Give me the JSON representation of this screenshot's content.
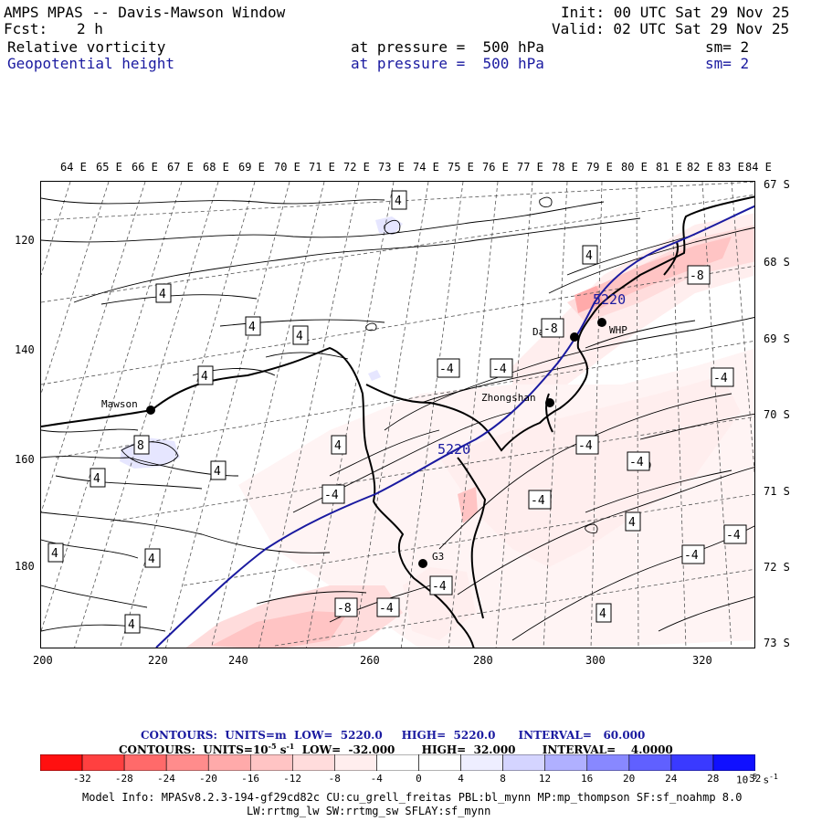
{
  "header": {
    "title": "AMPS MPAS -- Davis-Mawson Window",
    "fcst_label": "Fcst:",
    "fcst_value": "2 h",
    "init": "Init: 00 UTC Sat 29 Nov 25",
    "valid": "Valid: 02 UTC Sat 29 Nov 25",
    "field1": {
      "name": "Relative vorticity",
      "level": "at pressure =  500 hPa",
      "sm": "sm= 2"
    },
    "field2": {
      "name": "Geopotential height",
      "level": "at pressure =  500 hPa",
      "sm": "sm= 2"
    }
  },
  "axes": {
    "lon_labels": [
      "64 E",
      "65 E",
      "66 E",
      "67 E",
      "68 E",
      "69 E",
      "70 E",
      "71 E",
      "72 E",
      "73 E",
      "74 E",
      "75 E",
      "76 E",
      "77 E",
      "78 E",
      "79 E",
      "80 E",
      "81 E",
      "82 E",
      "83 E",
      "84 E"
    ],
    "lat_labels": [
      "67 S",
      "68 S",
      "69 S",
      "70 S",
      "71 S",
      "72 S",
      "73 S"
    ],
    "x_labels": [
      "200",
      "220",
      "240",
      "260",
      "280",
      "300",
      "320"
    ],
    "y_labels": [
      "120",
      "140",
      "160",
      "180"
    ]
  },
  "stations": [
    {
      "name": "Mawson"
    },
    {
      "name": "Davis"
    },
    {
      "name": "WHP"
    },
    {
      "name": "Zhongshan"
    },
    {
      "name": "G3"
    }
  ],
  "contour_labels": {
    "height": [
      "5220",
      "5220"
    ],
    "vorticity": [
      "4",
      "4",
      "4",
      "4",
      "4",
      "4",
      "4",
      "-4",
      "-4",
      "8",
      "4",
      "4",
      "4",
      "4",
      "4",
      "4",
      "-4",
      "-4",
      "-8",
      "4",
      "-8",
      "-4",
      "-4",
      "-4",
      "-4",
      "-4",
      "-4",
      "4",
      "-4",
      "-4",
      "-4",
      "4",
      "-4",
      "-8",
      "-4",
      "-4",
      "4"
    ]
  },
  "contour_info": {
    "line1": "CONTOURS:  UNITS=m  LOW=  5220.0     HIGH=  5220.0      INTERVAL=   60.000",
    "line2": "CONTOURS:  UNITS=10",
    "line2_exp": "-5",
    "line2_unit": " s",
    "line2_unit_exp": "-1",
    "line2_rest": "  LOW=  -32.000       HIGH=  32.000       INTERVAL=    4.0000"
  },
  "colorbar": {
    "labels": [
      "-32",
      "-28",
      "-24",
      "-20",
      "-16",
      "-12",
      "-8",
      "-4",
      "0",
      "4",
      "8",
      "12",
      "16",
      "20",
      "24",
      "28",
      "32"
    ],
    "unit": "10",
    "unit_exp": "-5",
    "unit_tail": " s",
    "unit_tail_exp": "-1",
    "colors": [
      "#ff1010",
      "#ff4040",
      "#ff6a6a",
      "#ff8c8c",
      "#ffaaaa",
      "#ffc4c4",
      "#ffdcdc",
      "#ffeeee",
      "#ffffff",
      "#ffffff",
      "#eeeeff",
      "#d4d4ff",
      "#b0b0ff",
      "#8888ff",
      "#6060ff",
      "#3a3aff",
      "#1010ff"
    ]
  },
  "model_info": {
    "line1": "Model Info: MPASv8.2.3-194-gf29cd82c CU:cu_grell_freitas PBL:bl_mynn MP:mp_thompson SF:sf_noahmp 8.0",
    "line2": "LW:rrtmg_lw SW:rrtmg_sw SFLAY:sf_mynn"
  },
  "colors": {
    "height_contour": "#1a1aa0",
    "coast": "#000000",
    "grid": "#555555"
  }
}
